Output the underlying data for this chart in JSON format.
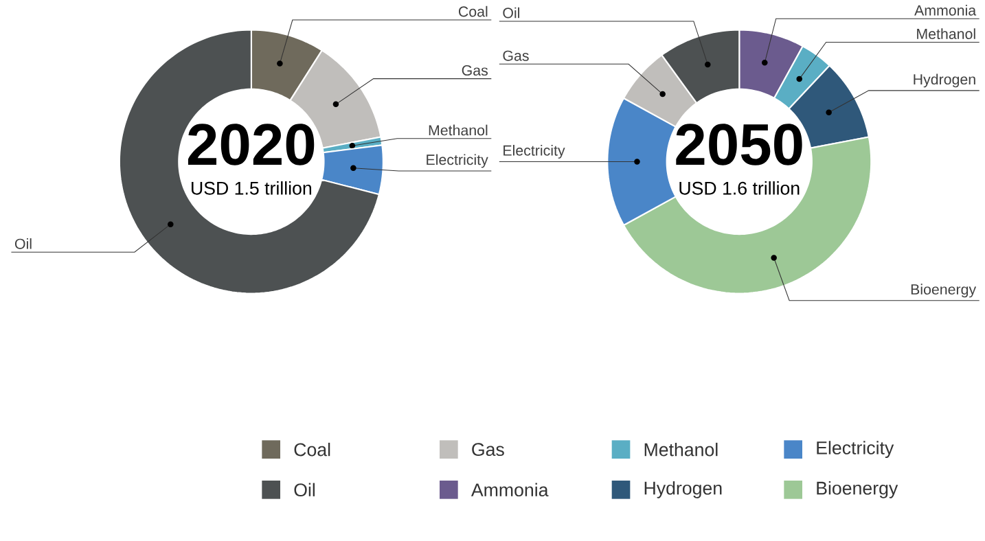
{
  "chart_data": [
    {
      "type": "donut",
      "title": "2020",
      "subtitle": "USD 1.5 trillion",
      "categories": [
        "Coal",
        "Gas",
        "Methanol",
        "Electricity",
        "Oil"
      ],
      "values": [
        9,
        13,
        1,
        6,
        71
      ],
      "colors": [
        "#6f6a5c",
        "#c0bebb",
        "#5aaec4",
        "#4a86c8",
        "#4d5152"
      ],
      "legend": "bottom"
    },
    {
      "type": "donut",
      "title": "2050",
      "subtitle": "USD 1.6 trillion",
      "categories": [
        "Ammonia",
        "Methanol",
        "Hydrogen",
        "Bioenergy",
        "Electricity",
        "Gas",
        "Oil"
      ],
      "values": [
        8,
        4,
        10,
        45,
        16,
        7,
        10
      ],
      "colors": [
        "#6b5b8e",
        "#5aaec4",
        "#2f587a",
        "#9dc896",
        "#4a86c8",
        "#c0bebb",
        "#4d5152"
      ],
      "legend": "bottom"
    }
  ]
}
